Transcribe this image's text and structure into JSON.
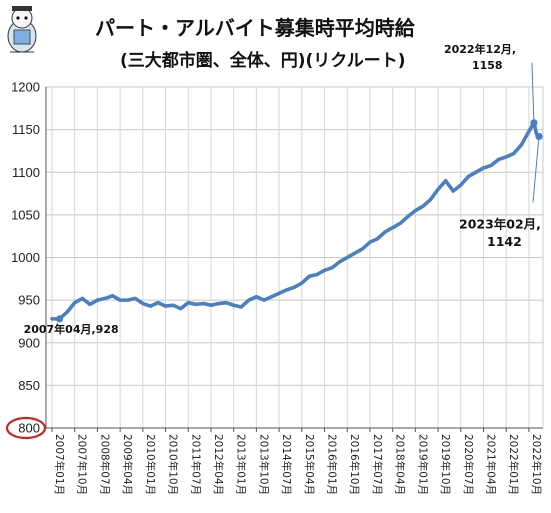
{
  "chart_data": {
    "type": "line",
    "title": "パート・アルバイト募集時平均時給",
    "subtitle": "(三大都市圏、全体、円)(リクルート)",
    "xlabel": "",
    "ylabel": "",
    "ylim": [
      800,
      1200
    ],
    "yticks": [
      "800",
      "850",
      "900",
      "950",
      "1000",
      "1050",
      "1100",
      "1150",
      "1200"
    ],
    "xlim": [
      "2007-01",
      "2023-02"
    ],
    "xticks": [
      "2007年01月",
      "2007年10月",
      "2008年07月",
      "2009年04月",
      "2010年01月",
      "2010年10月",
      "2011年07月",
      "2012年04月",
      "2013年01月",
      "2013年10月",
      "2014年07月",
      "2015年04月",
      "2016年01月",
      "2016年10月",
      "2017年07月",
      "2018年04月",
      "2019年01月",
      "2019年10月",
      "2020年07月",
      "2021年04月",
      "2022年01月",
      "2022年10月"
    ],
    "grid": true,
    "series": [
      {
        "name": "",
        "color": "#4a7fc1",
        "points": [
          [
            "2007-01",
            928
          ],
          [
            "2007-04",
            928
          ],
          [
            "2007-07",
            936
          ],
          [
            "2007-10",
            947
          ],
          [
            "2008-01",
            952
          ],
          [
            "2008-04",
            945
          ],
          [
            "2008-07",
            950
          ],
          [
            "2008-10",
            952
          ],
          [
            "2009-01",
            955
          ],
          [
            "2009-04",
            950
          ],
          [
            "2009-07",
            950
          ],
          [
            "2009-10",
            952
          ],
          [
            "2010-01",
            946
          ],
          [
            "2010-04",
            943
          ],
          [
            "2010-07",
            947
          ],
          [
            "2010-10",
            943
          ],
          [
            "2011-01",
            944
          ],
          [
            "2011-04",
            940
          ],
          [
            "2011-07",
            947
          ],
          [
            "2011-10",
            945
          ],
          [
            "2012-01",
            946
          ],
          [
            "2012-04",
            944
          ],
          [
            "2012-07",
            946
          ],
          [
            "2012-10",
            947
          ],
          [
            "2013-01",
            944
          ],
          [
            "2013-04",
            942
          ],
          [
            "2013-07",
            950
          ],
          [
            "2013-10",
            954
          ],
          [
            "2014-01",
            950
          ],
          [
            "2014-04",
            954
          ],
          [
            "2014-07",
            958
          ],
          [
            "2014-10",
            962
          ],
          [
            "2015-01",
            965
          ],
          [
            "2015-04",
            970
          ],
          [
            "2015-07",
            978
          ],
          [
            "2015-10",
            980
          ],
          [
            "2016-01",
            985
          ],
          [
            "2016-04",
            988
          ],
          [
            "2016-07",
            995
          ],
          [
            "2016-10",
            1000
          ],
          [
            "2017-01",
            1005
          ],
          [
            "2017-04",
            1010
          ],
          [
            "2017-07",
            1018
          ],
          [
            "2017-10",
            1022
          ],
          [
            "2018-01",
            1030
          ],
          [
            "2018-04",
            1035
          ],
          [
            "2018-07",
            1040
          ],
          [
            "2018-10",
            1048
          ],
          [
            "2019-01",
            1055
          ],
          [
            "2019-04",
            1060
          ],
          [
            "2019-07",
            1068
          ],
          [
            "2019-10",
            1080
          ],
          [
            "2020-01",
            1090
          ],
          [
            "2020-04",
            1078
          ],
          [
            "2020-07",
            1085
          ],
          [
            "2020-10",
            1095
          ],
          [
            "2021-01",
            1100
          ],
          [
            "2021-04",
            1105
          ],
          [
            "2021-07",
            1108
          ],
          [
            "2021-10",
            1115
          ],
          [
            "2022-01",
            1118
          ],
          [
            "2022-04",
            1122
          ],
          [
            "2022-07",
            1132
          ],
          [
            "2022-10",
            1148
          ],
          [
            "2022-12",
            1158
          ],
          [
            "2023-01",
            1145
          ],
          [
            "2023-02",
            1142
          ]
        ]
      }
    ],
    "annotations": [
      {
        "x": "2007-04",
        "y": 928,
        "text": "2007年04月,",
        "value": "928"
      },
      {
        "x": "2022-12",
        "y": 1158,
        "text": "2022年12月,",
        "value": "1158"
      },
      {
        "x": "2023-02",
        "y": 1142,
        "text": "2023年02月,",
        "value": "1142"
      }
    ],
    "highlight_tick": "800",
    "highlight_color": "#cc2222"
  }
}
